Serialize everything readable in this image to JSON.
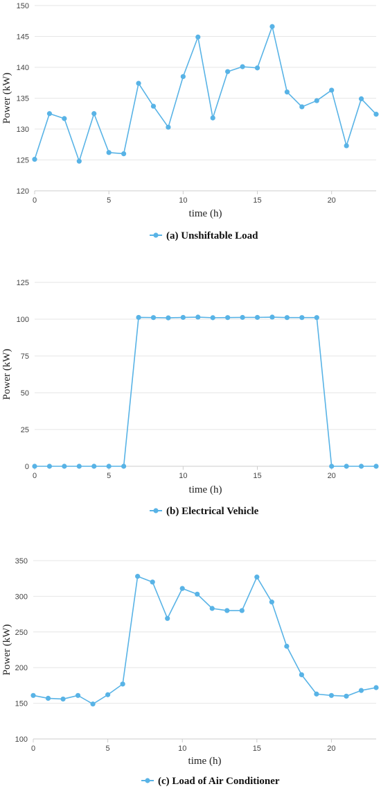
{
  "colors": {
    "series": "#58b3e6",
    "grid": "#e6e6e6",
    "axis": "#cccccc"
  },
  "chart_data": [
    {
      "type": "line",
      "title": "",
      "xlabel": "time (h)",
      "ylabel": "Power (kW)",
      "ylim": [
        120,
        150
      ],
      "xlim": [
        0,
        23
      ],
      "yticks": [
        120,
        125,
        130,
        135,
        140,
        145,
        150
      ],
      "xticks": [
        0,
        5,
        10,
        15,
        20
      ],
      "grid": true,
      "legend": "bottom-center",
      "series": [
        {
          "name": "(a) Unshiftable Load",
          "x": [
            0,
            1,
            2,
            3,
            4,
            5,
            6,
            7,
            8,
            9,
            10,
            11,
            12,
            13,
            14,
            15,
            16,
            17,
            18,
            19,
            20,
            21,
            22,
            23
          ],
          "values": [
            125.1,
            132.5,
            131.7,
            124.8,
            132.5,
            126.2,
            126.0,
            137.4,
            133.7,
            130.3,
            138.5,
            144.9,
            131.8,
            139.3,
            140.1,
            139.9,
            146.6,
            136.0,
            133.6,
            134.6,
            136.3,
            127.3,
            134.9,
            132.4
          ]
        }
      ]
    },
    {
      "type": "line",
      "title": "",
      "xlabel": "time (h)",
      "ylabel": "Power (kW)",
      "ylim": [
        0,
        125
      ],
      "xlim": [
        0,
        23
      ],
      "yticks": [
        0,
        25,
        50,
        75,
        100,
        125
      ],
      "xticks": [
        0,
        5,
        10,
        15,
        20
      ],
      "grid": true,
      "legend": "bottom-center",
      "series": [
        {
          "name": "(b) Electrical Vehicle",
          "x": [
            0,
            1,
            2,
            3,
            4,
            5,
            6,
            7,
            8,
            9,
            10,
            11,
            12,
            13,
            14,
            15,
            16,
            17,
            18,
            19,
            20,
            21,
            22,
            23
          ],
          "values": [
            0,
            0,
            0,
            0,
            0,
            0,
            0,
            101.2,
            101.1,
            100.9,
            101.2,
            101.4,
            101.0,
            101.1,
            101.2,
            101.2,
            101.4,
            101.1,
            101.1,
            101.1,
            0,
            0,
            0,
            0
          ]
        }
      ]
    },
    {
      "type": "line",
      "title": "",
      "xlabel": "time (h)",
      "ylabel": "Power (kW)",
      "ylim": [
        100,
        350
      ],
      "xlim": [
        0,
        23
      ],
      "yticks": [
        100,
        150,
        200,
        250,
        300,
        350
      ],
      "xticks": [
        0,
        5,
        10,
        15,
        20
      ],
      "grid": true,
      "legend": "bottom-center",
      "series": [
        {
          "name": "(c) Load of Air Conditioner",
          "x": [
            0,
            1,
            2,
            3,
            4,
            5,
            6,
            7,
            8,
            9,
            10,
            11,
            12,
            13,
            14,
            15,
            16,
            17,
            18,
            19,
            20,
            21,
            22,
            23
          ],
          "values": [
            161,
            157,
            156,
            161,
            149,
            162,
            177,
            328,
            320,
            269,
            311,
            303,
            283,
            280,
            280,
            327,
            292,
            230,
            190,
            163,
            161,
            160,
            168,
            172
          ]
        }
      ]
    }
  ]
}
